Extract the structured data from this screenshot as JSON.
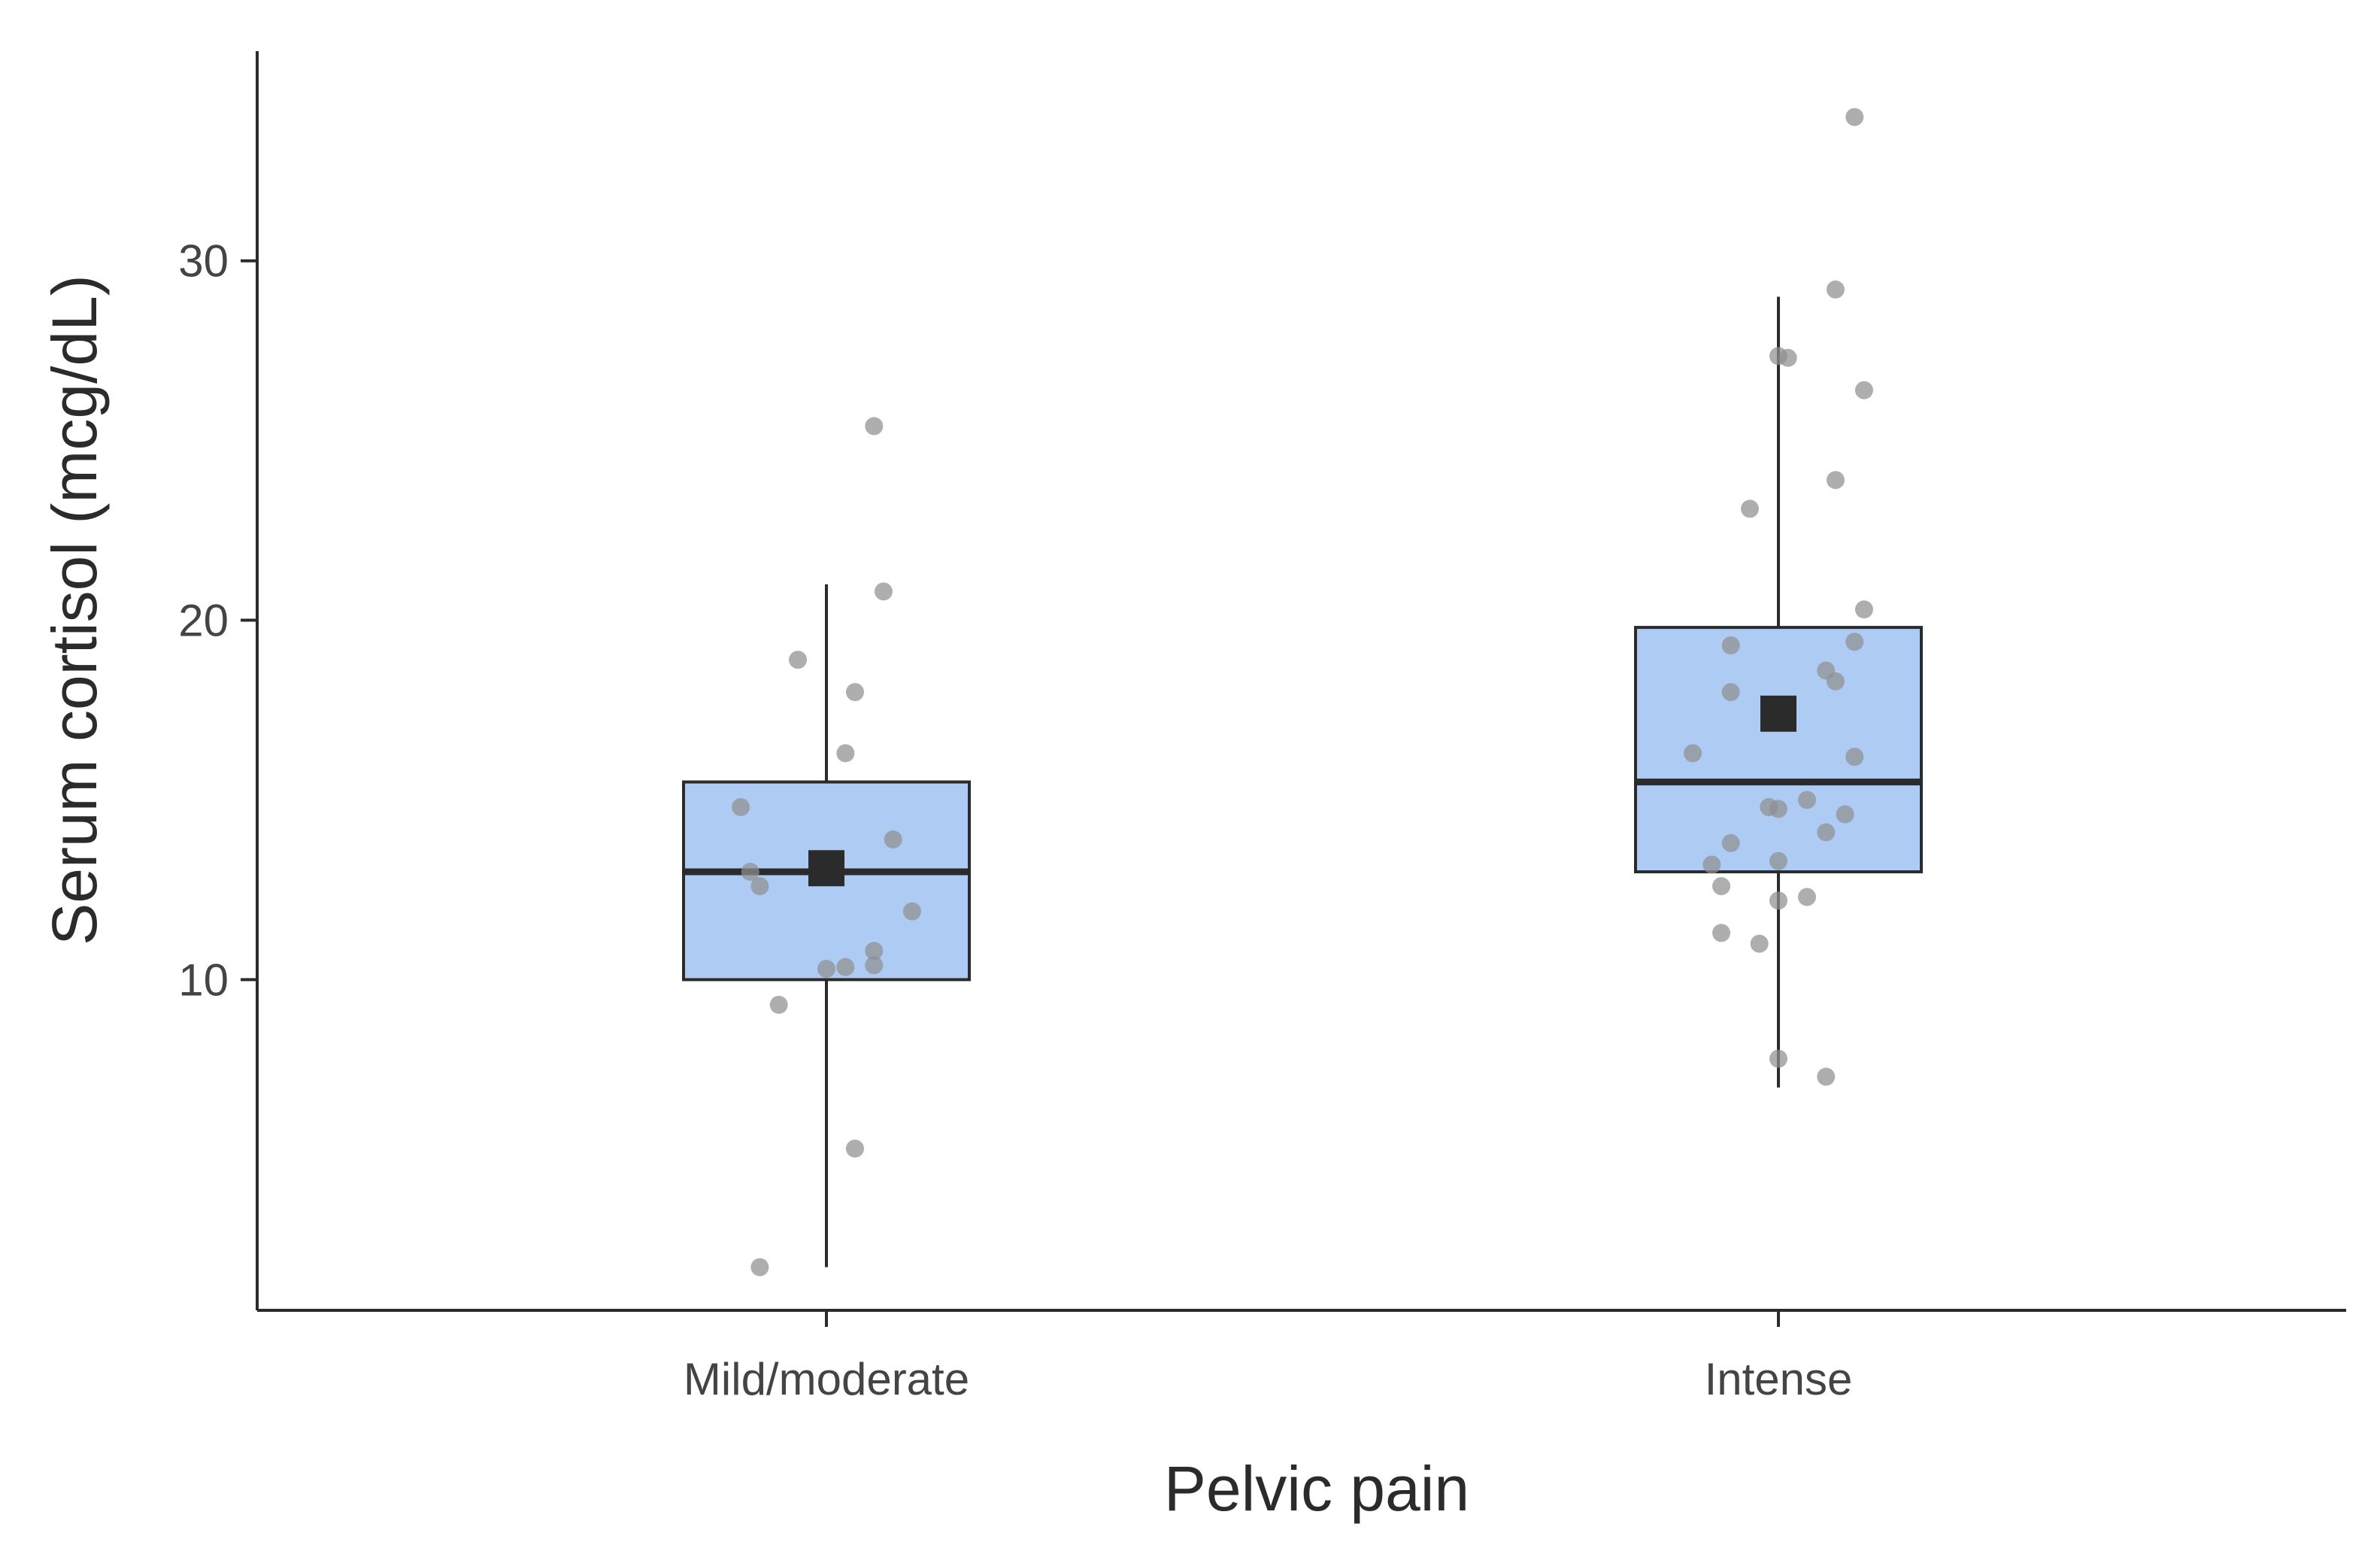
{
  "chart_data": {
    "type": "boxplot",
    "title": "",
    "xlabel": "Pelvic pain",
    "ylabel": "Serum cortisol (mcg/dL)",
    "ylim": [
      0.8,
      36
    ],
    "yticks": [
      10,
      20,
      30
    ],
    "grid": false,
    "colors": {
      "box_fill": "#aecbf3",
      "box_stroke": "#2b2b2b",
      "point": "#8f8f8f",
      "mean_marker": "#2b2b2b",
      "axis": "#2b2b2b"
    },
    "categories": [
      "Mild/moderate",
      "Intense"
    ],
    "groups": [
      {
        "name": "Mild/moderate",
        "whisker_low": 2.0,
        "q1": 10.0,
        "median": 13.0,
        "q3": 15.5,
        "whisker_high": 21.0,
        "mean": 13.1,
        "points": [
          {
            "jitter": -0.07,
            "value": 2.0
          },
          {
            "jitter": 0.03,
            "value": 5.3
          },
          {
            "jitter": -0.05,
            "value": 9.3
          },
          {
            "jitter": 0.0,
            "value": 10.3
          },
          {
            "jitter": 0.02,
            "value": 10.35
          },
          {
            "jitter": 0.05,
            "value": 10.4
          },
          {
            "jitter": 0.05,
            "value": 10.8
          },
          {
            "jitter": 0.09,
            "value": 11.9
          },
          {
            "jitter": -0.07,
            "value": 12.6
          },
          {
            "jitter": -0.08,
            "value": 13.0
          },
          {
            "jitter": 0.07,
            "value": 13.9
          },
          {
            "jitter": -0.09,
            "value": 14.8
          },
          {
            "jitter": 0.02,
            "value": 16.3
          },
          {
            "jitter": 0.03,
            "value": 18.0
          },
          {
            "jitter": -0.03,
            "value": 18.9
          },
          {
            "jitter": 0.06,
            "value": 20.8
          },
          {
            "jitter": 0.05,
            "value": 25.4
          }
        ]
      },
      {
        "name": "Intense",
        "whisker_low": 7.0,
        "q1": 13.0,
        "median": 15.5,
        "q3": 19.8,
        "whisker_high": 29.0,
        "mean": 17.4,
        "points": [
          {
            "jitter": 0.05,
            "value": 7.3
          },
          {
            "jitter": 0.0,
            "value": 7.8
          },
          {
            "jitter": -0.02,
            "value": 11.0
          },
          {
            "jitter": -0.06,
            "value": 11.3
          },
          {
            "jitter": 0.0,
            "value": 12.2
          },
          {
            "jitter": 0.03,
            "value": 12.3
          },
          {
            "jitter": -0.06,
            "value": 12.6
          },
          {
            "jitter": -0.07,
            "value": 13.2
          },
          {
            "jitter": 0.0,
            "value": 13.3
          },
          {
            "jitter": -0.05,
            "value": 13.8
          },
          {
            "jitter": 0.05,
            "value": 14.1
          },
          {
            "jitter": 0.07,
            "value": 14.6
          },
          {
            "jitter": -0.01,
            "value": 14.8
          },
          {
            "jitter": 0.0,
            "value": 14.75
          },
          {
            "jitter": 0.03,
            "value": 15.0
          },
          {
            "jitter": -0.09,
            "value": 16.3
          },
          {
            "jitter": 0.08,
            "value": 16.2
          },
          {
            "jitter": -0.05,
            "value": 18.0
          },
          {
            "jitter": 0.06,
            "value": 18.3
          },
          {
            "jitter": 0.05,
            "value": 18.6
          },
          {
            "jitter": -0.05,
            "value": 19.3
          },
          {
            "jitter": 0.08,
            "value": 19.4
          },
          {
            "jitter": 0.09,
            "value": 20.3
          },
          {
            "jitter": -0.03,
            "value": 23.1
          },
          {
            "jitter": 0.06,
            "value": 23.9
          },
          {
            "jitter": 0.09,
            "value": 26.4
          },
          {
            "jitter": 0.01,
            "value": 27.3
          },
          {
            "jitter": 0.0,
            "value": 27.35
          },
          {
            "jitter": 0.06,
            "value": 29.2
          },
          {
            "jitter": 0.08,
            "value": 34.0
          }
        ]
      }
    ]
  }
}
